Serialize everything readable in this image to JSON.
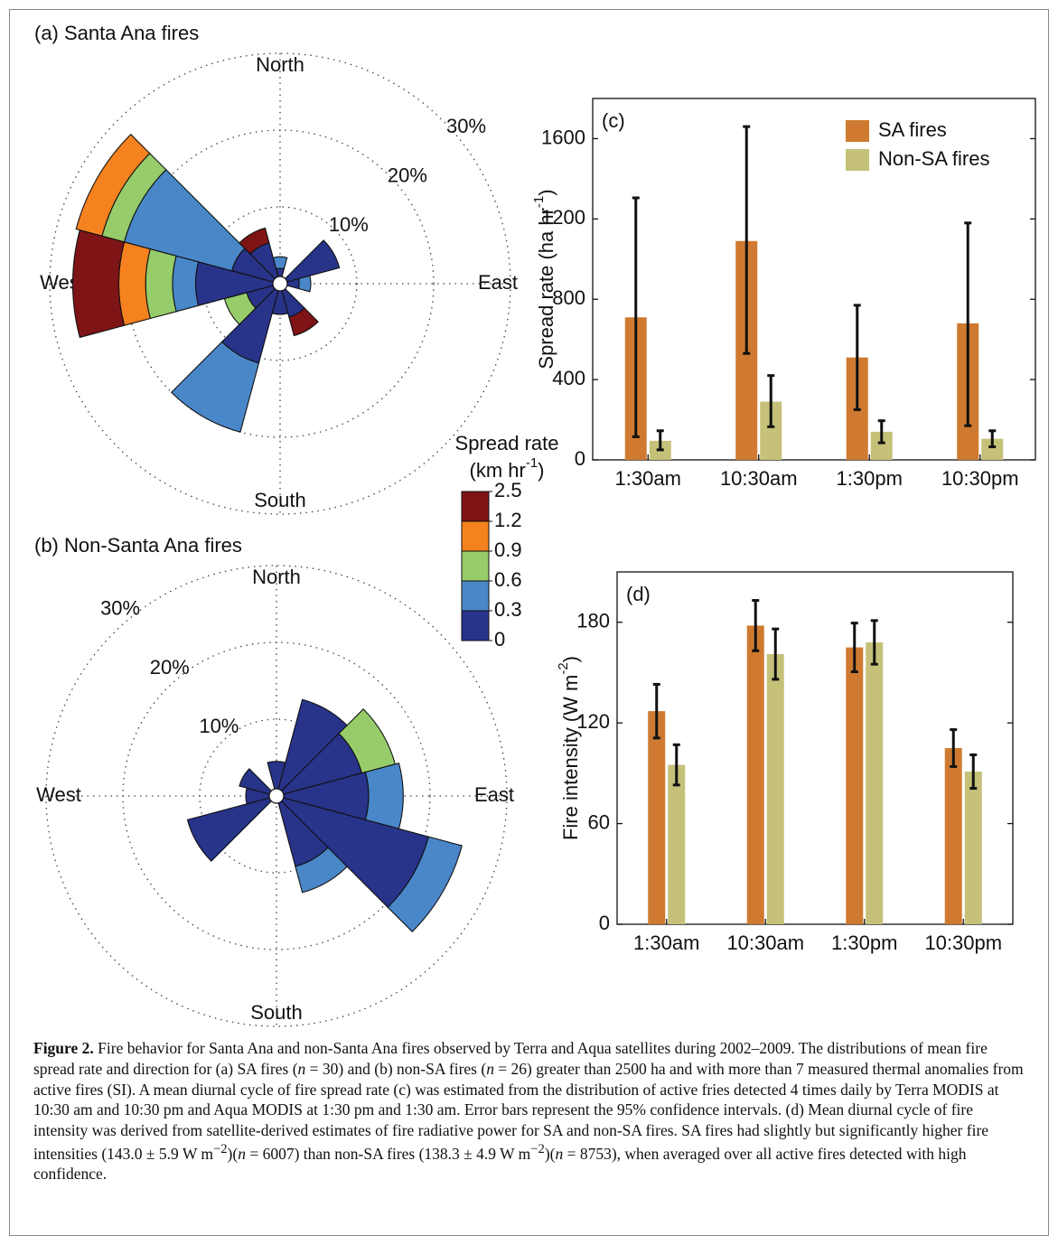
{
  "chart_data": [
    {
      "type": "rose",
      "title": "(a) Santa Ana fires",
      "directions": [
        0,
        30,
        60,
        90,
        120,
        150,
        180,
        210,
        240,
        270,
        300,
        330
      ],
      "compass_labels": [
        "North",
        "East",
        "South",
        "West"
      ],
      "rlim": [
        0,
        30
      ],
      "rticks": [
        {
          "value": 10,
          "label": "10%"
        },
        {
          "value": 20,
          "label": "20%"
        },
        {
          "value": 30,
          "label": "30%"
        }
      ],
      "series": [
        {
          "color": "#28338a",
          "values": [
            2,
            0,
            8,
            2.5,
            0,
            4.5,
            4,
            10.7,
            4.5,
            11,
            6.5,
            5.5
          ]
        },
        {
          "color": "#4a87c9",
          "values": [
            1.5,
            0,
            0,
            1.5,
            0,
            0,
            0,
            9.3,
            0,
            3,
            14.5,
            0
          ]
        },
        {
          "color": "#96cc6a",
          "values": [
            0,
            0,
            0,
            0,
            0,
            0,
            0,
            0,
            3,
            3.5,
            3,
            0
          ]
        },
        {
          "color": "#f5821f",
          "values": [
            0,
            0,
            0,
            0,
            0,
            0,
            0,
            0,
            0,
            3.5,
            3.5,
            0
          ]
        },
        {
          "color": "#7f1416",
          "values": [
            0,
            0,
            0,
            0,
            0,
            2.5,
            0,
            0,
            0,
            6,
            0,
            2
          ]
        }
      ],
      "colorbar": {
        "title": "Spread rate",
        "unit": "(km hr",
        "unit_sup": "-1",
        "unit_end": ")",
        "ticks": [
          0,
          0.3,
          0.6,
          0.9,
          1.2,
          2.5
        ]
      }
    },
    {
      "type": "rose",
      "title": "(b) Non-Santa Ana fires",
      "directions": [
        0,
        30,
        60,
        90,
        120,
        150,
        180,
        210,
        240,
        270,
        300,
        330
      ],
      "compass_labels": [
        "North",
        "East",
        "South",
        "West"
      ],
      "rlim": [
        0,
        30
      ],
      "rticks": [
        {
          "value": 10,
          "label": "10%"
        },
        {
          "value": 20,
          "label": "20%"
        },
        {
          "value": 30,
          "label": "30%"
        }
      ],
      "series": [
        {
          "color": "#28338a",
          "values": [
            4.5,
            13,
            11.5,
            12,
            20.5,
            9.5,
            0,
            0,
            12,
            4,
            5,
            0
          ]
        },
        {
          "color": "#4a87c9",
          "values": [
            0,
            0,
            0,
            4.5,
            4.5,
            3.5,
            0,
            0,
            0,
            0,
            0,
            0
          ]
        },
        {
          "color": "#96cc6a",
          "values": [
            0,
            0,
            4.5,
            0,
            0,
            0,
            0,
            0,
            0,
            0,
            0,
            0
          ]
        },
        {
          "color": "#f5821f",
          "values": [
            0,
            0,
            0,
            0,
            0,
            0,
            0,
            0,
            0,
            0,
            0,
            0
          ]
        },
        {
          "color": "#7f1416",
          "values": [
            0,
            0,
            0,
            0,
            0,
            0,
            0,
            0,
            0,
            0,
            0,
            0
          ]
        }
      ]
    },
    {
      "type": "bar",
      "title": "(c)",
      "ylabel": "Spread rate (ha hr",
      "ylabel_sup": "-1",
      "ylabel_end": ")",
      "categories": [
        "1:30am",
        "10:30am",
        "1:30pm",
        "10:30pm"
      ],
      "ylim": [
        0,
        1800
      ],
      "yticks": [
        0,
        400,
        800,
        1200,
        1600
      ],
      "legend": "upper right",
      "series": [
        {
          "name": "SA fires",
          "color": "#cf7a30",
          "values": [
            710,
            1090,
            510,
            680
          ],
          "ci_low": [
            115,
            530,
            250,
            170
          ],
          "ci_high": [
            1305,
            1660,
            770,
            1180
          ]
        },
        {
          "name": "Non-SA fires",
          "color": "#c5c179",
          "values": [
            95,
            290,
            140,
            105
          ],
          "ci_low": [
            50,
            165,
            85,
            65
          ],
          "ci_high": [
            145,
            420,
            195,
            145
          ]
        }
      ]
    },
    {
      "type": "bar",
      "title": "(d)",
      "ylabel": "Fire intensity (W m",
      "ylabel_sup": "-2",
      "ylabel_end": ")",
      "categories": [
        "1:30am",
        "10:30am",
        "1:30pm",
        "10:30pm"
      ],
      "ylim": [
        0,
        210
      ],
      "yticks": [
        0,
        60,
        120,
        180
      ],
      "series": [
        {
          "name": "SA fires",
          "color": "#cf7a30",
          "values": [
            127,
            178,
            165,
            105
          ],
          "ci_low": [
            111,
            163,
            150.5,
            94
          ],
          "ci_high": [
            143,
            193,
            179.5,
            116
          ]
        },
        {
          "name": "Non-SA fires",
          "color": "#c5c179",
          "values": [
            95,
            161,
            168,
            91
          ],
          "ci_low": [
            83,
            146,
            155,
            81
          ],
          "ci_high": [
            107,
            176,
            181,
            101
          ]
        }
      ]
    }
  ],
  "caption": {
    "label": "Figure 2.",
    "parts": [
      " Fire behavior for Santa Ana and non-Santa Ana fires observed by Terra and Aqua satellites during 2002–2009. The distributions of mean fire spread rate and direction for (a) SA fires (",
      "n",
      " = 30) and (b) non-SA fires (",
      "n",
      " = 26) greater than 2500 ha and with more than 7 measured thermal anomalies from active fires (SI). A mean diurnal cycle of fire spread rate (c) was estimated from the distribution of active fries detected 4 times daily by Terra MODIS at 10:30 am and 10:30 pm and Aqua MODIS at 1:30 pm and 1:30 am. Error bars represent the 95% confidence intervals. (d) Mean diurnal cycle of fire intensity was derived from satellite-derived estimates of fire radiative power for SA and non-SA fires. SA fires had slightly but significantly higher fire intensities (143.0 ± 5.9 W m",
      "−2",
      ")(",
      "n",
      " = 6007) than non-SA fires (138.3 ± 4.9 W m",
      "−2",
      ")(",
      "n",
      " = 8753), when averaged over all active fires detected with high confidence."
    ]
  }
}
